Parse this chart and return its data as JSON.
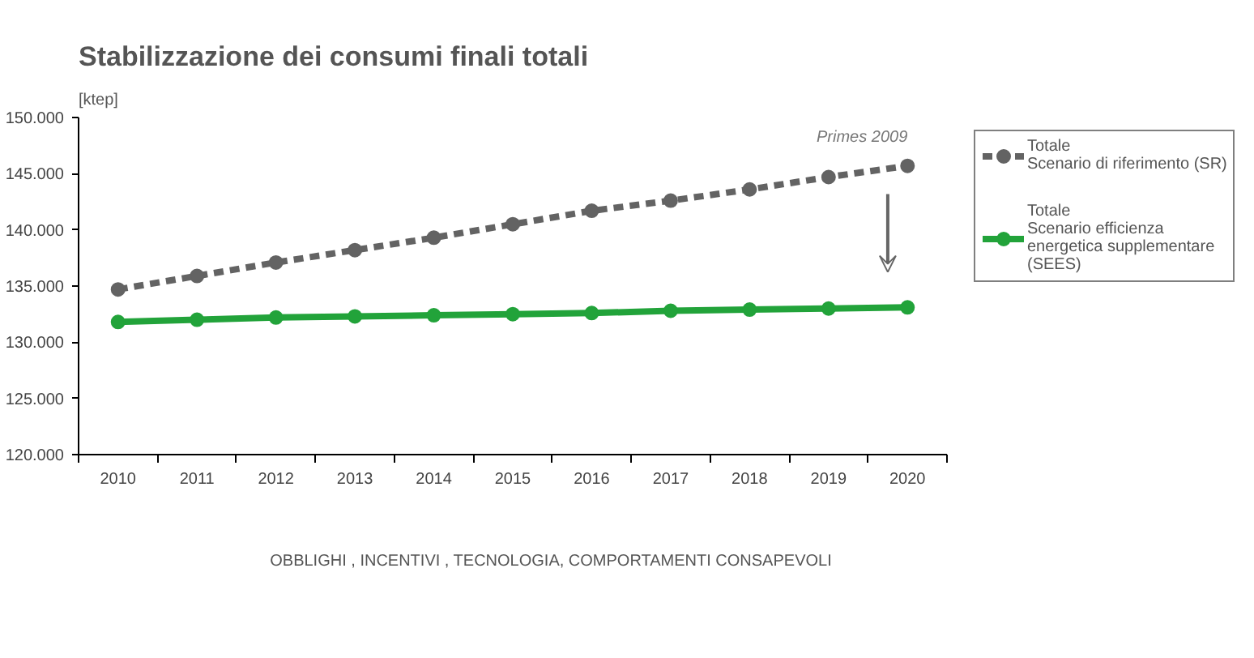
{
  "chart_data": {
    "type": "line",
    "title": "Stabilizzazione dei consumi finali totali",
    "ylabel": "[ktep]",
    "categories": [
      "2010",
      "2011",
      "2012",
      "2013",
      "2014",
      "2015",
      "2016",
      "2017",
      "2018",
      "2019",
      "2020"
    ],
    "series": [
      {
        "name": "Totale\nScenario di riferimento (SR)",
        "color": "#636363",
        "line_style": "dashed",
        "values": [
          134700,
          135900,
          137100,
          138200,
          139300,
          140500,
          141700,
          142600,
          143600,
          144700,
          145700
        ]
      },
      {
        "name": "Totale\nScenario efficienza\nenergetica supplementare\n(SEES)",
        "color": "#22a33a",
        "line_style": "solid",
        "values": [
          131800,
          132000,
          132200,
          132300,
          132400,
          132500,
          132600,
          132800,
          132900,
          133000,
          133100
        ]
      }
    ],
    "ylim": [
      120000,
      150000
    ],
    "yticks": [
      {
        "value": 120000,
        "label": "120.000"
      },
      {
        "value": 125000,
        "label": "125.000"
      },
      {
        "value": 130000,
        "label": "130.000"
      },
      {
        "value": 135000,
        "label": "135.000"
      },
      {
        "value": 140000,
        "label": "140.000"
      },
      {
        "value": 145000,
        "label": "145.000"
      },
      {
        "value": 150000,
        "label": "150.000"
      }
    ],
    "marker": "circle",
    "grid": false,
    "legend": "right",
    "annotations": [
      {
        "text": "Primes 2009",
        "x": "2020",
        "y": 145700
      },
      "OBBLIGHI , INCENTIVI , TECNOLOGIA, COMPORTAMENTI CONSAPEVOLI"
    ]
  }
}
